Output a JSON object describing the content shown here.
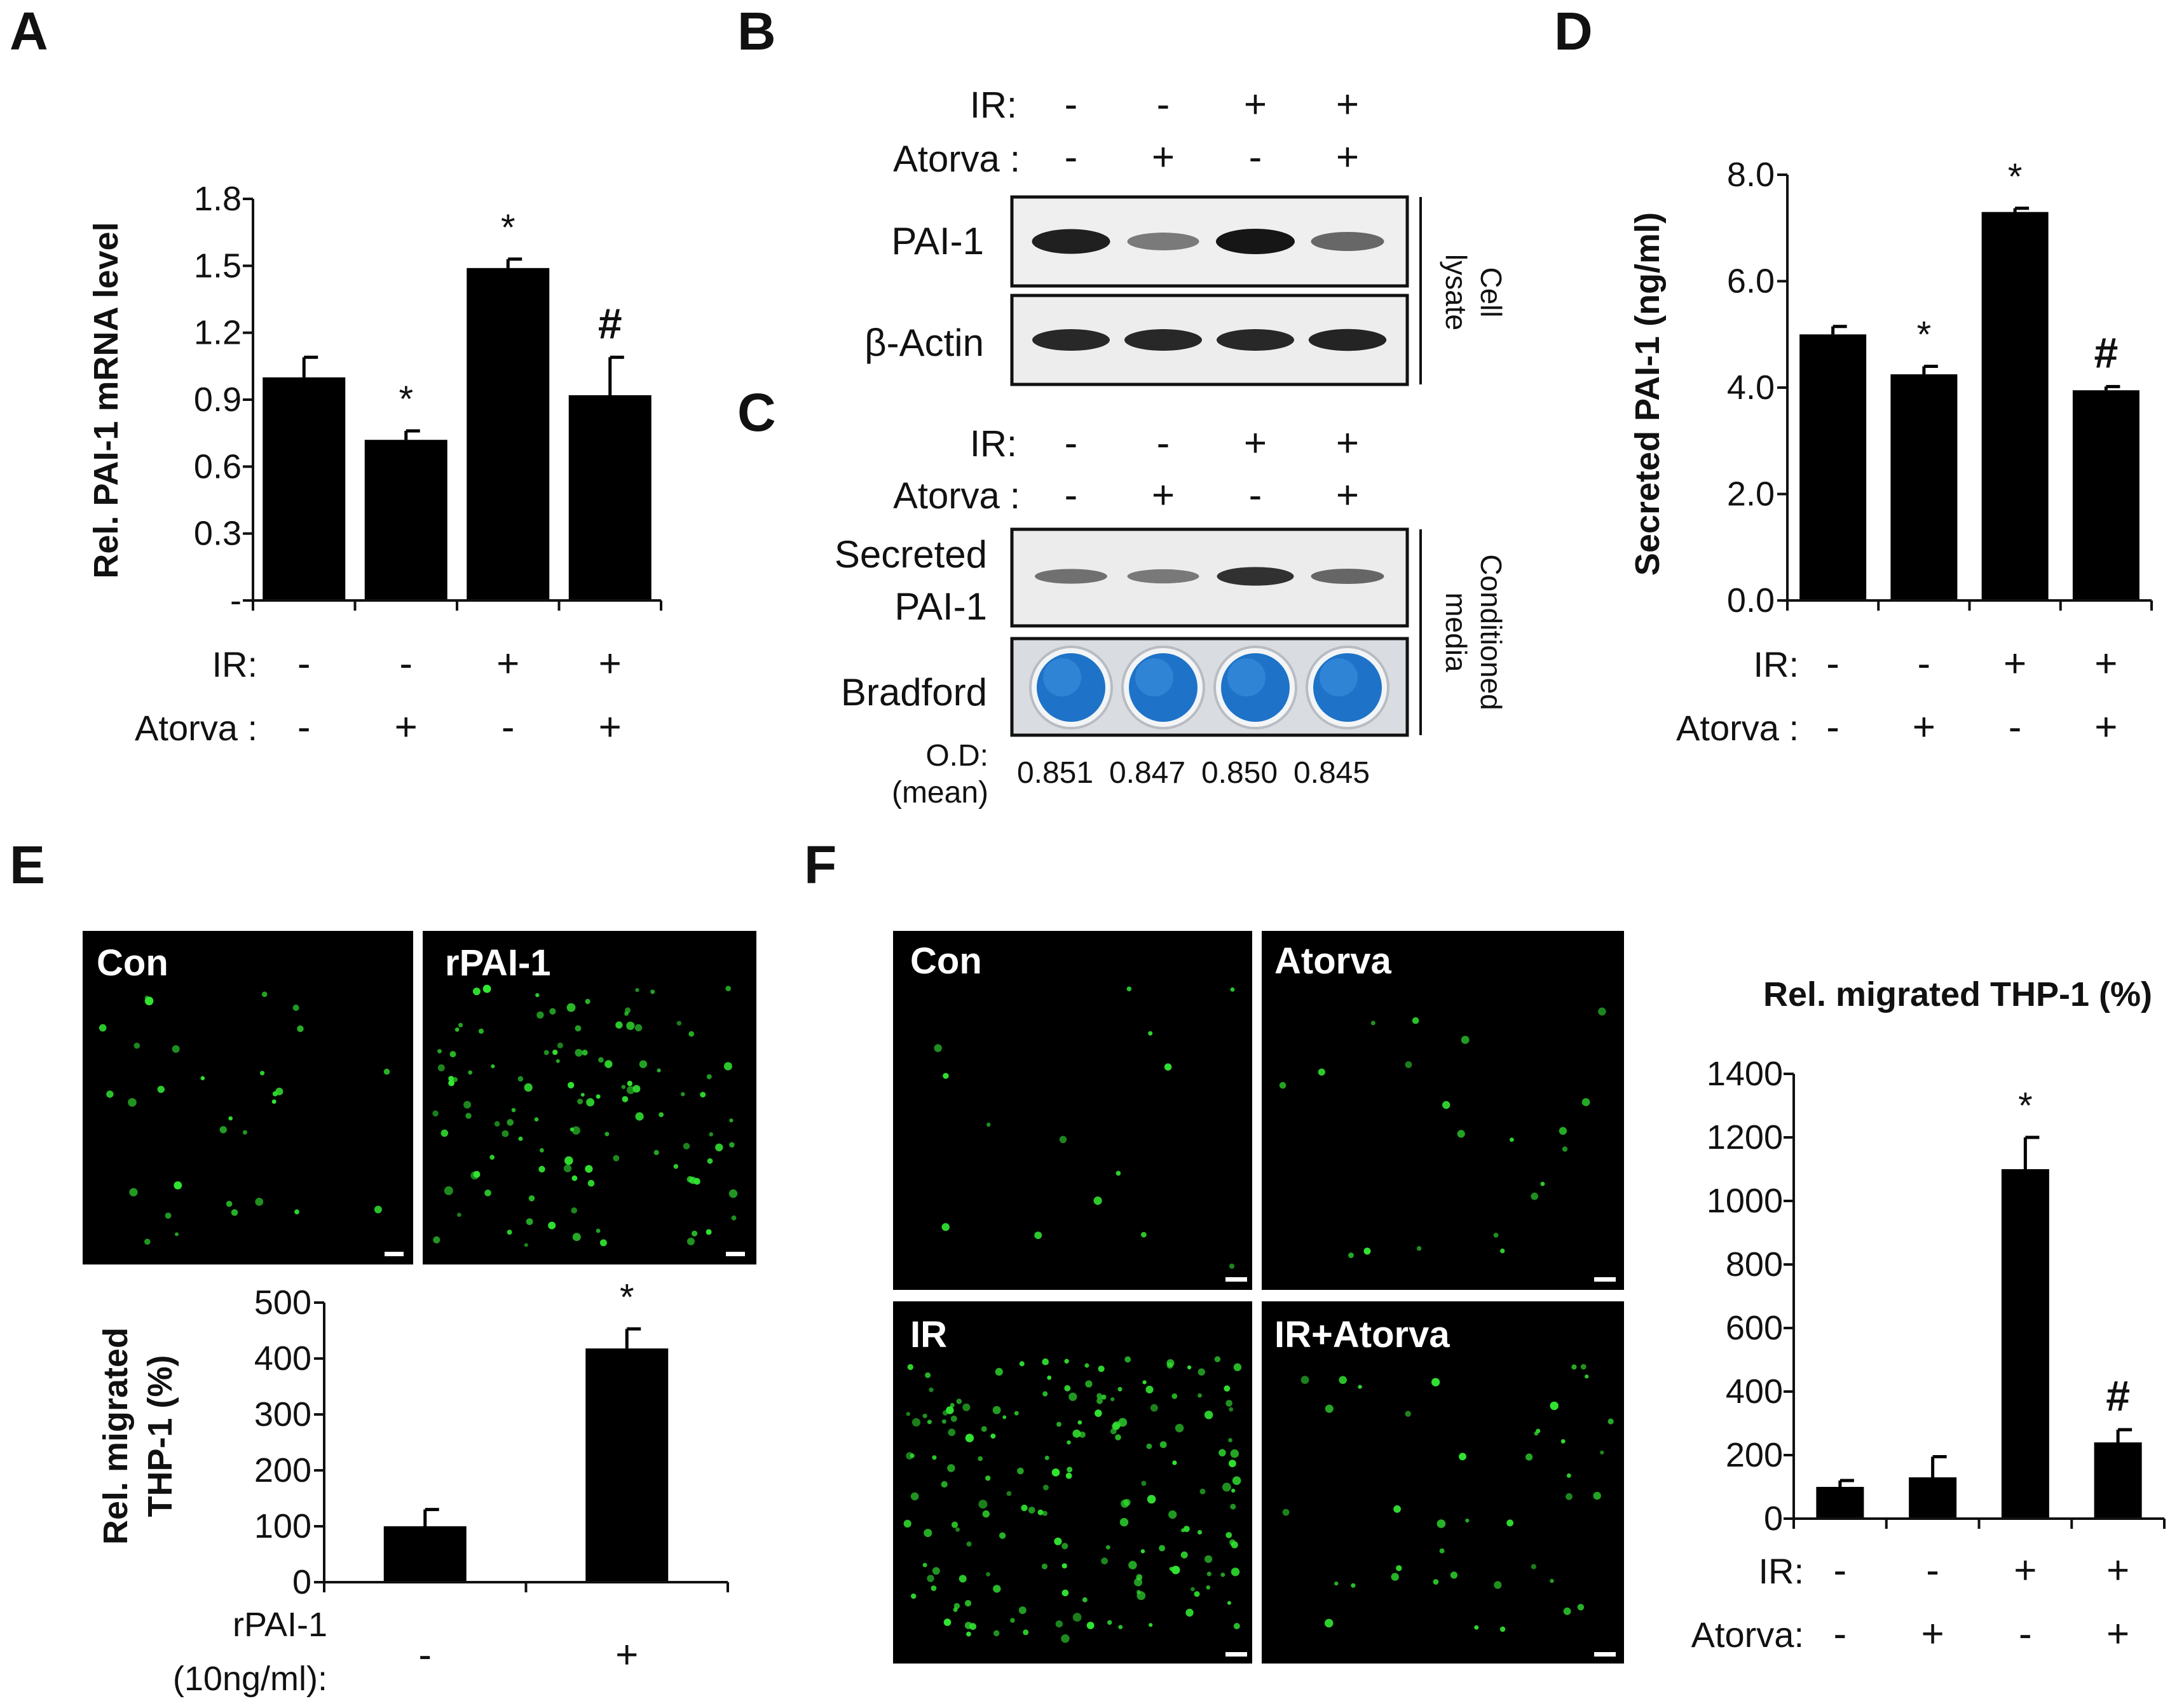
{
  "panel_letters": [
    "A",
    "B",
    "C",
    "D",
    "E",
    "F"
  ],
  "treatment_labels": {
    "ir": "IR:",
    "atorva": "Atorva :",
    "atorva_f": "Atorva:",
    "rpai_line1": "rPAI-1",
    "rpai_line2": "(10ng/ml):"
  },
  "chart_data": [
    {
      "id": "A",
      "type": "bar",
      "ylabel": "Rel. PAI-1 mRNA level",
      "yticks": [
        "-",
        "0.3",
        "0.6",
        "0.9",
        "1.2",
        "1.5",
        "1.8"
      ],
      "ylim": [
        0,
        1.8
      ],
      "values": [
        1.0,
        0.72,
        1.49,
        0.92
      ],
      "errors": [
        0.09,
        0.04,
        0.04,
        0.17
      ],
      "markers": [
        "",
        "*",
        "*",
        "#"
      ],
      "ir": [
        "-",
        "-",
        "+",
        "+"
      ],
      "atorva": [
        "-",
        "+",
        "-",
        "+"
      ]
    },
    {
      "id": "D",
      "type": "bar",
      "ylabel": "Secreted PAI-1 (ng/ml)",
      "yticks": [
        "0.0",
        "2.0",
        "4.0",
        "6.0",
        "8.0"
      ],
      "ylim": [
        0,
        8
      ],
      "values": [
        5.0,
        4.25,
        7.3,
        3.95
      ],
      "errors": [
        0.15,
        0.15,
        0.07,
        0.07
      ],
      "markers": [
        "",
        "*",
        "*",
        "#"
      ],
      "ir": [
        "-",
        "-",
        "+",
        "+"
      ],
      "atorva": [
        "-",
        "+",
        "-",
        "+"
      ]
    },
    {
      "id": "E",
      "type": "bar",
      "ylabel": "Rel. migrated THP-1 (%)",
      "ylabel_line1": "Rel. migrated",
      "ylabel_line2": "THP-1 (%)",
      "yticks": [
        "0",
        "100",
        "200",
        "300",
        "400",
        "500"
      ],
      "ylim": [
        0,
        500
      ],
      "values": [
        100,
        418
      ],
      "errors": [
        30,
        35
      ],
      "markers": [
        "",
        "*"
      ],
      "rpai": [
        "-",
        "+"
      ]
    },
    {
      "id": "F",
      "type": "bar",
      "title": "Rel. migrated THP-1 (%)",
      "yticks": [
        "0",
        "200",
        "400",
        "600",
        "800",
        "1000",
        "1200",
        "1400"
      ],
      "ylim": [
        0,
        1400
      ],
      "values": [
        100,
        130,
        1100,
        240
      ],
      "errors": [
        20,
        65,
        100,
        40
      ],
      "markers": [
        "",
        "",
        "*",
        "#"
      ],
      "ir": [
        "-",
        "-",
        "+",
        "+"
      ],
      "atorva": [
        "-",
        "+",
        "-",
        "+"
      ]
    }
  ],
  "blot_b": {
    "ir": [
      "-",
      "-",
      "+",
      "+"
    ],
    "atorva": [
      "-",
      "+",
      "-",
      "+"
    ],
    "rows": [
      "PAI-1",
      "β-Actin"
    ],
    "side_label_1": "Cell",
    "side_label_2": "lysate",
    "band_intensity": {
      "pai1": [
        0.95,
        0.45,
        1.0,
        0.55
      ],
      "actin": [
        0.9,
        0.9,
        0.9,
        0.92
      ]
    }
  },
  "blot_c": {
    "ir": [
      "-",
      "-",
      "+",
      "+"
    ],
    "atorva": [
      "-",
      "+",
      "-",
      "+"
    ],
    "row1_line1": "Secreted",
    "row1_line2": "PAI-1",
    "row2": "Bradford",
    "side_label_1": "Conditioned",
    "side_label_2": "media",
    "od_label_1": "O.D:",
    "od_label_2": "(mean)",
    "od_values": [
      "0.851",
      "0.847",
      "0.850",
      "0.845"
    ],
    "band_intensity": [
      0.5,
      0.45,
      0.85,
      0.55
    ]
  },
  "micro_e": [
    "Con",
    "rPAI-1"
  ],
  "micro_f": [
    "Con",
    "Atorva",
    "IR",
    "IR+Atorva"
  ],
  "colors": {
    "bar": "#000000",
    "fluor": "#32e632",
    "well": "#1e73c8",
    "background": "#000000"
  }
}
